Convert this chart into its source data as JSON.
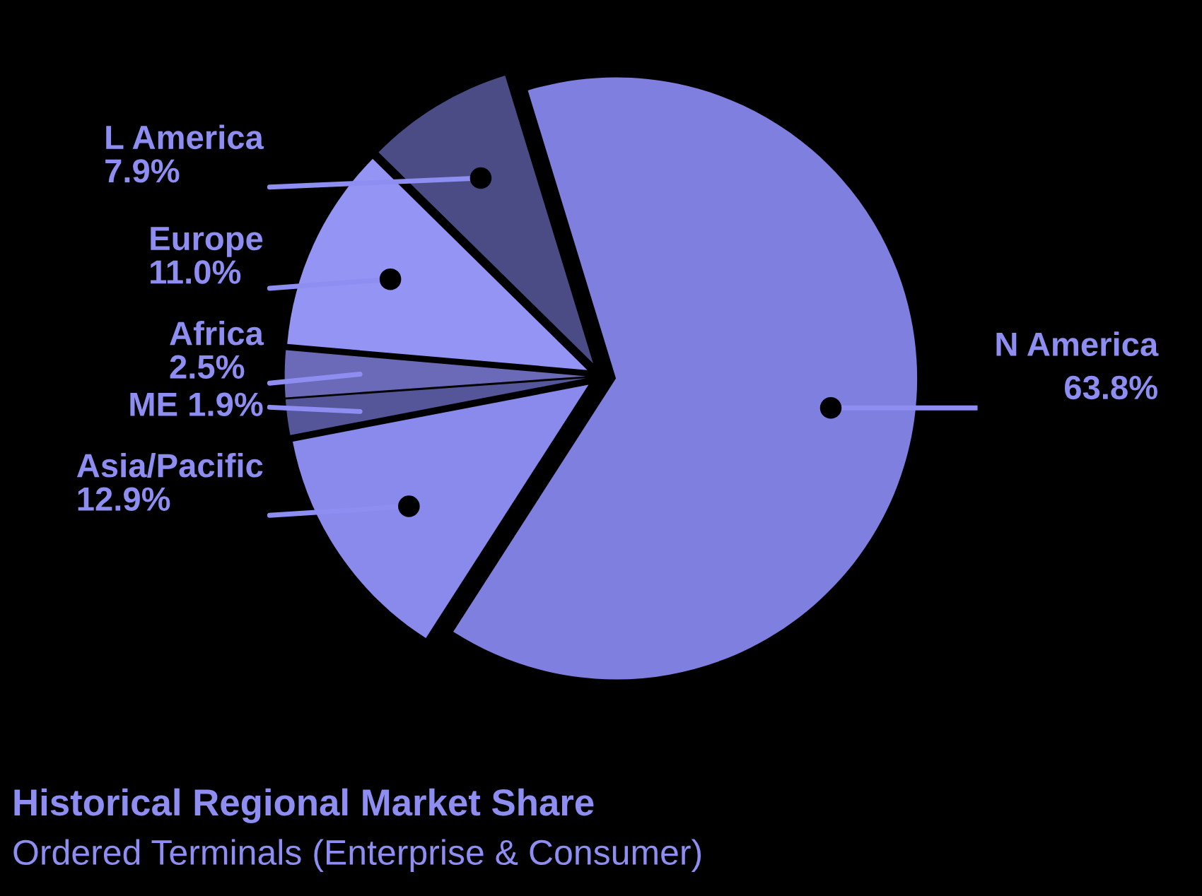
{
  "chart_data": {
    "type": "pie",
    "title": "Historical Regional Market Share",
    "subtitle": "Ordered Terminals (Enterprise & Consumer)",
    "categories": [
      "N America",
      "Asia/Pacific",
      "ME",
      "Africa",
      "Europe",
      "L America"
    ],
    "values": [
      63.8,
      12.9,
      1.9,
      2.5,
      11.0,
      7.9
    ],
    "value_labels": [
      "63.8%",
      "12.9%",
      "1.9%",
      "2.5%",
      "11.0%",
      "7.9%"
    ],
    "colors": [
      "#7f7fe0",
      "#8a8aec",
      "#55559a",
      "#6a6ab8",
      "#9494f4",
      "#4b4b85"
    ]
  }
}
